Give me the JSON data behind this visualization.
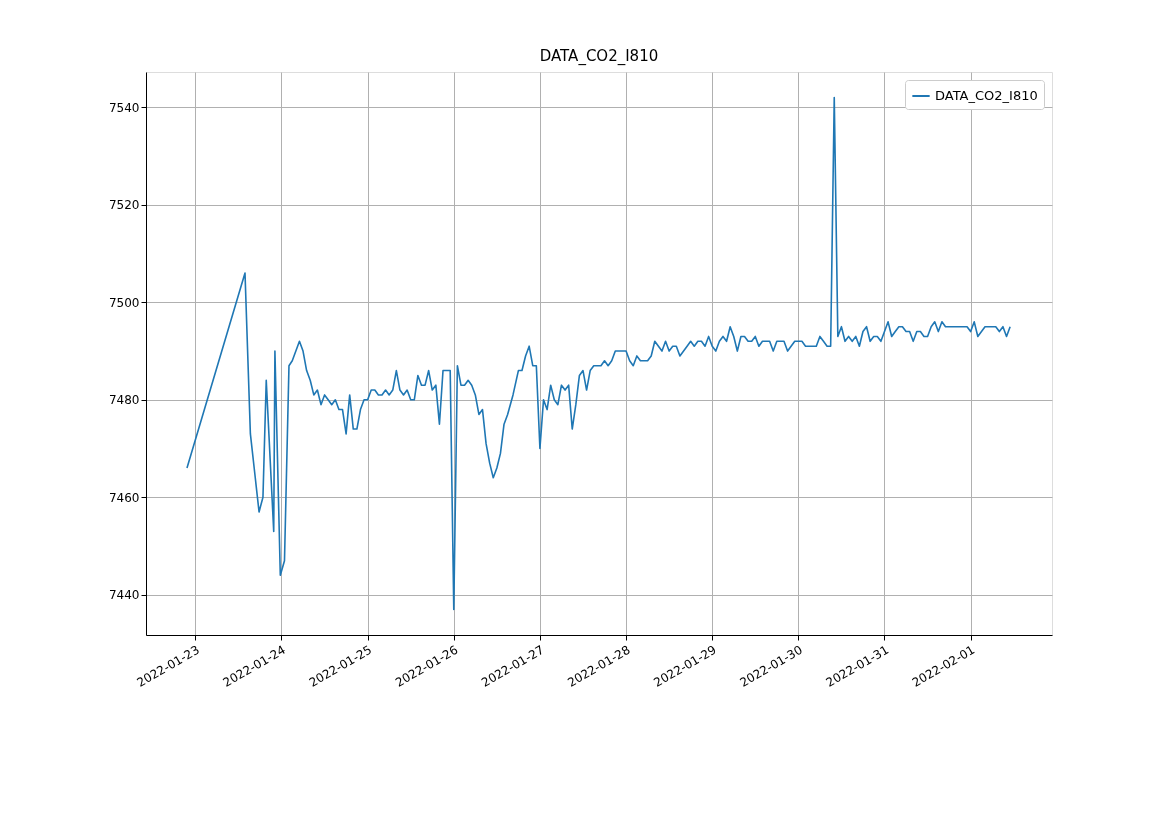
{
  "chart_data": {
    "type": "line",
    "title": "DATA_CO2_I810",
    "xlim": [
      "2022-01-22T10:15",
      "2022-02-01T22:40"
    ],
    "ylim": [
      7431.75,
      7547.25
    ],
    "xticks": [
      "2022-01-23",
      "2022-01-24",
      "2022-01-25",
      "2022-01-26",
      "2022-01-27",
      "2022-01-28",
      "2022-01-29",
      "2022-01-30",
      "2022-01-31",
      "2022-02-01"
    ],
    "yticks": [
      7440,
      7460,
      7480,
      7500,
      7520,
      7540
    ],
    "grid": true,
    "legend": "top right",
    "marker": "none",
    "line_style": "solid",
    "series": [
      {
        "name": "DATA_CO2_I810",
        "color": "#1f77b4",
        "x": [
          "2022-01-22T21:40",
          "2022-01-23T13:50",
          "2022-01-23T15:20",
          "2022-01-23T17:45",
          "2022-01-23T18:50",
          "2022-01-23T19:45",
          "2022-01-23T21:50",
          "2022-01-23T22:10",
          "2022-01-23T23:40",
          "2022-01-24T00:50",
          "2022-01-24T02:05",
          "2022-01-24T03:00",
          "2022-01-24T05:00",
          "2022-01-24T06:00",
          "2022-01-24T07:00",
          "2022-01-24T08:00",
          "2022-01-24T09:00",
          "2022-01-24T10:00",
          "2022-01-24T11:00",
          "2022-01-24T12:00",
          "2022-01-24T13:00",
          "2022-01-24T14:00",
          "2022-01-24T15:00",
          "2022-01-24T16:00",
          "2022-01-24T17:00",
          "2022-01-24T18:00",
          "2022-01-24T19:00",
          "2022-01-24T20:00",
          "2022-01-24T21:00",
          "2022-01-24T22:00",
          "2022-01-24T23:00",
          "2022-01-25T00:00",
          "2022-01-25T01:00",
          "2022-01-25T02:00",
          "2022-01-25T03:00",
          "2022-01-25T04:00",
          "2022-01-25T05:00",
          "2022-01-25T06:00",
          "2022-01-25T07:00",
          "2022-01-25T08:00",
          "2022-01-25T09:00",
          "2022-01-25T10:00",
          "2022-01-25T11:00",
          "2022-01-25T12:00",
          "2022-01-25T13:00",
          "2022-01-25T14:00",
          "2022-01-25T15:00",
          "2022-01-25T16:00",
          "2022-01-25T17:00",
          "2022-01-25T18:00",
          "2022-01-25T19:00",
          "2022-01-25T20:00",
          "2022-01-25T21:00",
          "2022-01-25T23:00",
          "2022-01-26T00:00",
          "2022-01-26T01:00",
          "2022-01-26T02:00",
          "2022-01-26T03:00",
          "2022-01-26T04:00",
          "2022-01-26T05:00",
          "2022-01-26T06:00",
          "2022-01-26T07:00",
          "2022-01-26T08:00",
          "2022-01-26T09:00",
          "2022-01-26T10:00",
          "2022-01-26T11:00",
          "2022-01-26T12:00",
          "2022-01-26T13:00",
          "2022-01-26T14:00",
          "2022-01-26T15:00",
          "2022-01-26T16:30",
          "2022-01-26T18:00",
          "2022-01-26T19:00",
          "2022-01-26T20:00",
          "2022-01-26T21:00",
          "2022-01-26T22:00",
          "2022-01-26T23:00",
          "2022-01-27T00:00",
          "2022-01-27T01:00",
          "2022-01-27T02:00",
          "2022-01-27T03:00",
          "2022-01-27T04:00",
          "2022-01-27T05:00",
          "2022-01-27T06:00",
          "2022-01-27T07:00",
          "2022-01-27T08:00",
          "2022-01-27T09:00",
          "2022-01-27T10:00",
          "2022-01-27T11:00",
          "2022-01-27T12:00",
          "2022-01-27T13:00",
          "2022-01-27T14:00",
          "2022-01-27T15:00",
          "2022-01-27T17:00",
          "2022-01-27T18:00",
          "2022-01-27T19:00",
          "2022-01-27T20:00",
          "2022-01-27T21:00",
          "2022-01-28T00:00",
          "2022-01-28T01:00",
          "2022-01-28T02:00",
          "2022-01-28T03:00",
          "2022-01-28T04:00",
          "2022-01-28T06:00",
          "2022-01-28T07:00",
          "2022-01-28T08:00",
          "2022-01-28T10:00",
          "2022-01-28T11:00",
          "2022-01-28T12:00",
          "2022-01-28T13:00",
          "2022-01-28T14:00",
          "2022-01-28T15:00",
          "2022-01-28T17:00",
          "2022-01-28T18:00",
          "2022-01-28T19:00",
          "2022-01-28T20:00",
          "2022-01-28T21:00",
          "2022-01-28T22:00",
          "2022-01-28T23:00",
          "2022-01-29T00:00",
          "2022-01-29T01:00",
          "2022-01-29T02:00",
          "2022-01-29T03:00",
          "2022-01-29T04:00",
          "2022-01-29T05:00",
          "2022-01-29T06:00",
          "2022-01-29T07:00",
          "2022-01-29T08:00",
          "2022-01-29T09:00",
          "2022-01-29T10:00",
          "2022-01-29T11:00",
          "2022-01-29T12:00",
          "2022-01-29T13:00",
          "2022-01-29T14:00",
          "2022-01-29T16:00",
          "2022-01-29T17:00",
          "2022-01-29T18:00",
          "2022-01-29T20:00",
          "2022-01-29T21:00",
          "2022-01-29T23:00",
          "2022-01-30T01:00",
          "2022-01-30T02:00",
          "2022-01-30T05:00",
          "2022-01-30T06:00",
          "2022-01-30T07:00",
          "2022-01-30T08:00",
          "2022-01-30T09:00",
          "2022-01-30T10:00",
          "2022-01-30T11:00",
          "2022-01-30T12:00",
          "2022-01-30T13:00",
          "2022-01-30T14:00",
          "2022-01-30T15:00",
          "2022-01-30T16:00",
          "2022-01-30T17:00",
          "2022-01-30T18:00",
          "2022-01-30T19:00",
          "2022-01-30T20:00",
          "2022-01-30T21:00",
          "2022-01-30T22:00",
          "2022-01-30T23:00",
          "2022-01-31T00:00",
          "2022-01-31T01:00",
          "2022-01-31T02:00",
          "2022-01-31T03:00",
          "2022-01-31T04:00",
          "2022-01-31T05:00",
          "2022-01-31T06:00",
          "2022-01-31T07:00",
          "2022-01-31T08:00",
          "2022-01-31T09:00",
          "2022-01-31T10:00",
          "2022-01-31T11:00",
          "2022-01-31T12:00",
          "2022-01-31T13:00",
          "2022-01-31T14:00",
          "2022-01-31T15:00",
          "2022-01-31T16:00",
          "2022-01-31T17:00",
          "2022-01-31T23:00",
          "2022-02-01T00:00",
          "2022-02-01T01:00",
          "2022-02-01T02:00",
          "2022-02-01T04:00",
          "2022-02-01T07:00",
          "2022-02-01T08:00",
          "2022-02-01T09:00",
          "2022-02-01T10:00",
          "2022-02-01T11:00"
        ],
        "values": [
          7466,
          7506,
          7473,
          7457,
          7460,
          7484,
          7453,
          7490,
          7444,
          7447,
          7487,
          7488,
          7492,
          7490,
          7486,
          7484,
          7481,
          7482,
          7479,
          7481,
          7480,
          7479,
          7480,
          7478,
          7478,
          7473,
          7481,
          7474,
          7474,
          7478,
          7480,
          7480,
          7482,
          7482,
          7481,
          7481,
          7482,
          7481,
          7482,
          7486,
          7482,
          7481,
          7482,
          7480,
          7480,
          7485,
          7483,
          7483,
          7486,
          7482,
          7483,
          7475,
          7486,
          7486,
          7437,
          7487,
          7483,
          7483,
          7484,
          7483,
          7481,
          7477,
          7478,
          7471,
          7467,
          7464,
          7466,
          7469,
          7475,
          7477,
          7481,
          7486,
          7486,
          7489,
          7491,
          7487,
          7487,
          7470,
          7480,
          7478,
          7483,
          7480,
          7479,
          7483,
          7482,
          7483,
          7474,
          7479,
          7485,
          7486,
          7482,
          7486,
          7487,
          7487,
          7488,
          7487,
          7488,
          7490,
          7490,
          7488,
          7487,
          7489,
          7488,
          7488,
          7489,
          7492,
          7490,
          7492,
          7490,
          7491,
          7491,
          7489,
          7491,
          7492,
          7491,
          7492,
          7492,
          7491,
          7493,
          7491,
          7490,
          7492,
          7493,
          7492,
          7495,
          7493,
          7490,
          7493,
          7493,
          7492,
          7492,
          7493,
          7491,
          7492,
          7492,
          7490,
          7492,
          7492,
          7490,
          7492,
          7492,
          7491,
          7491,
          7493,
          7492,
          7491,
          7491,
          7542,
          7493,
          7495,
          7492,
          7493,
          7492,
          7493,
          7491,
          7494,
          7495,
          7492,
          7493,
          7493,
          7492,
          7494,
          7496,
          7493,
          7494,
          7495,
          7495,
          7494,
          7494,
          7492,
          7494,
          7494,
          7493,
          7493,
          7495,
          7496,
          7494,
          7496,
          7495,
          7495,
          7494,
          7496,
          7493,
          7495,
          7495,
          7494,
          7495,
          7493,
          7495
        ]
      }
    ]
  }
}
